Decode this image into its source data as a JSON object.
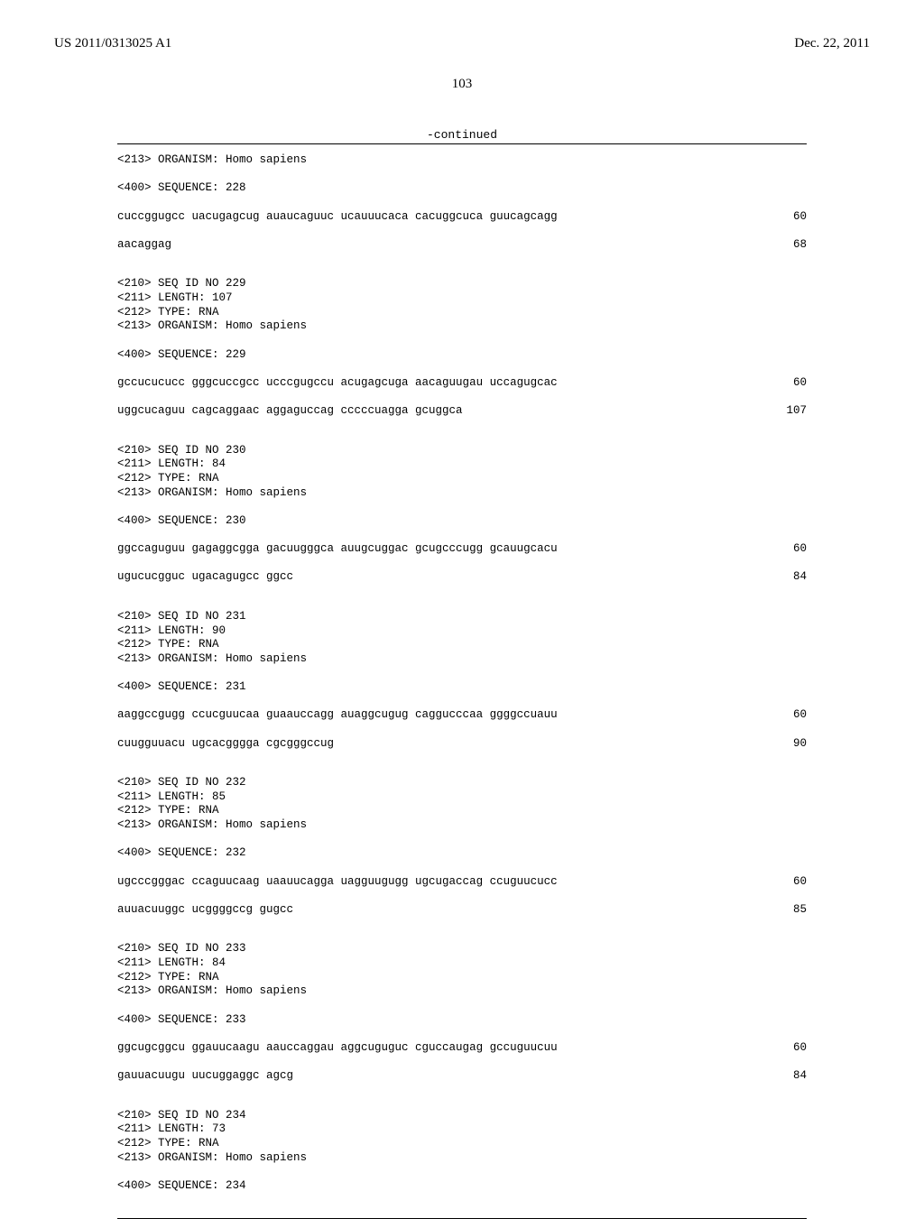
{
  "header": {
    "pub_number": "US 2011/0313025 A1",
    "pub_date": "Dec. 22, 2011"
  },
  "page_number": "103",
  "continued_label": "-continued",
  "entries": [
    {
      "meta": [
        "<213> ORGANISM: Homo sapiens",
        "",
        "<400> SEQUENCE: 228"
      ],
      "rows": [
        {
          "text": "cuccggugcc uacugagcug auaucaguuc ucauuucaca cacuggcuca guucagcagg",
          "num": "60"
        },
        {
          "text": "aacaggag",
          "num": "68"
        }
      ]
    },
    {
      "meta": [
        "<210> SEQ ID NO 229",
        "<211> LENGTH: 107",
        "<212> TYPE: RNA",
        "<213> ORGANISM: Homo sapiens",
        "",
        "<400> SEQUENCE: 229"
      ],
      "rows": [
        {
          "text": "gccucucucc gggcuccgcc ucccgugccu acugagcuga aacaguugau uccagugcac",
          "num": "60"
        },
        {
          "text": "uggcucaguu cagcaggaac aggaguccag cccccuagga gcuggca",
          "num": "107"
        }
      ]
    },
    {
      "meta": [
        "<210> SEQ ID NO 230",
        "<211> LENGTH: 84",
        "<212> TYPE: RNA",
        "<213> ORGANISM: Homo sapiens",
        "",
        "<400> SEQUENCE: 230"
      ],
      "rows": [
        {
          "text": "ggccaguguu gagaggcgga gacuugggca auugcuggac gcugcccugg gcauugcacu",
          "num": "60"
        },
        {
          "text": "ugucucgguc ugacagugcc ggcc",
          "num": "84"
        }
      ]
    },
    {
      "meta": [
        "<210> SEQ ID NO 231",
        "<211> LENGTH: 90",
        "<212> TYPE: RNA",
        "<213> ORGANISM: Homo sapiens",
        "",
        "<400> SEQUENCE: 231"
      ],
      "rows": [
        {
          "text": "aaggccgugg ccucguucaa guaauccagg auaggcugug caggucccaa ggggccuauu",
          "num": "60"
        },
        {
          "text": "cuugguuacu ugcacgggga cgcgggccug",
          "num": "90"
        }
      ]
    },
    {
      "meta": [
        "<210> SEQ ID NO 232",
        "<211> LENGTH: 85",
        "<212> TYPE: RNA",
        "<213> ORGANISM: Homo sapiens",
        "",
        "<400> SEQUENCE: 232"
      ],
      "rows": [
        {
          "text": "ugcccgggac ccaguucaag uaauucagga uagguugugg ugcugaccag ccuguucucc",
          "num": "60"
        },
        {
          "text": "auuacuuggc ucggggccg gugcc",
          "num": "85"
        }
      ]
    },
    {
      "meta": [
        "<210> SEQ ID NO 233",
        "<211> LENGTH: 84",
        "<212> TYPE: RNA",
        "<213> ORGANISM: Homo sapiens",
        "",
        "<400> SEQUENCE: 233"
      ],
      "rows": [
        {
          "text": "ggcugcggcu ggauucaagu aauccaggau aggcuguguc cguccaugag gccuguucuu",
          "num": "60"
        },
        {
          "text": "gauuacuugu uucuggaggc agcg",
          "num": "84"
        }
      ]
    },
    {
      "meta": [
        "<210> SEQ ID NO 234",
        "<211> LENGTH: 73",
        "<212> TYPE: RNA",
        "<213> ORGANISM: Homo sapiens",
        "",
        "<400> SEQUENCE: 234"
      ],
      "rows": []
    }
  ]
}
